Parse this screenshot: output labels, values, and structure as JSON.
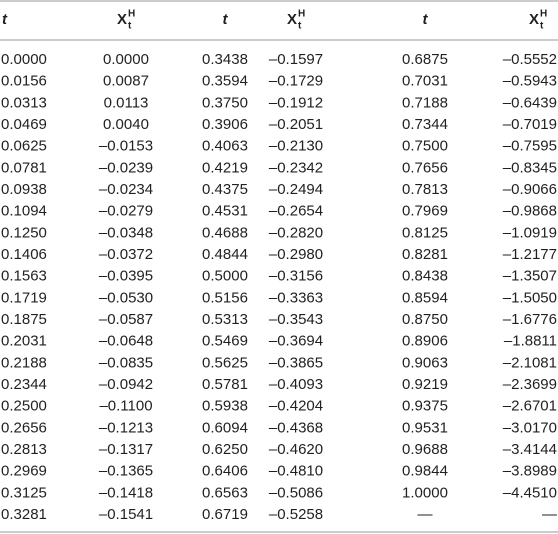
{
  "table": {
    "header": [
      "t",
      {
        "base": "X",
        "sub": "t",
        "sup": "H"
      },
      "t",
      {
        "base": "X",
        "sub": "t",
        "sup": "H"
      },
      "t",
      {
        "base": "X",
        "sub": "t",
        "sup": "H"
      }
    ],
    "rows": [
      [
        "0.0000",
        "0.0000",
        "0.3438",
        "–0.1597",
        "0.6875",
        "–0.5552"
      ],
      [
        "0.0156",
        "0.0087",
        "0.3594",
        "–0.1729",
        "0.7031",
        "–0.5943"
      ],
      [
        "0.0313",
        "0.0113",
        "0.3750",
        "–0.1912",
        "0.7188",
        "–0.6439"
      ],
      [
        "0.0469",
        "0.0040",
        "0.3906",
        "–0.2051",
        "0.7344",
        "–0.7019"
      ],
      [
        "0.0625",
        "–0.0153",
        "0.4063",
        "–0.2130",
        "0.7500",
        "–0.7595"
      ],
      [
        "0.0781",
        "–0.0239",
        "0.4219",
        "–0.2342",
        "0.7656",
        "–0.8345"
      ],
      [
        "0.0938",
        "–0.0234",
        "0.4375",
        "–0.2494",
        "0.7813",
        "–0.9066"
      ],
      [
        "0.1094",
        "–0.0279",
        "0.4531",
        "–0.2654",
        "0.7969",
        "–0.9868"
      ],
      [
        "0.1250",
        "–0.0348",
        "0.4688",
        "–0.2820",
        "0.8125",
        "–1.0919"
      ],
      [
        "0.1406",
        "–0.0372",
        "0.4844",
        "–0.2980",
        "0.8281",
        "–1.2177"
      ],
      [
        "0.1563",
        "–0.0395",
        "0.5000",
        "–0.3156",
        "0.8438",
        "–1.3507"
      ],
      [
        "0.1719",
        "–0.0530",
        "0.5156",
        "–0.3363",
        "0.8594",
        "–1.5050"
      ],
      [
        "0.1875",
        "–0.0587",
        "0.5313",
        "–0.3543",
        "0.8750",
        "–1.6776"
      ],
      [
        "0.2031",
        "–0.0648",
        "0.5469",
        "–0.3694",
        "0.8906",
        "–1.8811"
      ],
      [
        "0.2188",
        "–0.0835",
        "0.5625",
        "–0.3865",
        "0.9063",
        "–2.1081"
      ],
      [
        "0.2344",
        "–0.0942",
        "0.5781",
        "–0.4093",
        "0.9219",
        "–2.3699"
      ],
      [
        "0.2500",
        "–0.1100",
        "0.5938",
        "–0.4204",
        "0.9375",
        "–2.6701"
      ],
      [
        "0.2656",
        "–0.1213",
        "0.6094",
        "–0.4368",
        "0.9531",
        "–3.0170"
      ],
      [
        "0.2813",
        "–0.1317",
        "0.6250",
        "–0.4620",
        "0.9688",
        "–3.4144"
      ],
      [
        "0.2969",
        "–0.1365",
        "0.6406",
        "–0.4810",
        "0.9844",
        "–3.8989"
      ],
      [
        "0.3125",
        "–0.1418",
        "0.6563",
        "–0.5086",
        "1.0000",
        "–4.4510"
      ],
      [
        "0.3281",
        "–0.1541",
        "0.6719",
        "–0.5258",
        "—",
        "—"
      ]
    ]
  }
}
